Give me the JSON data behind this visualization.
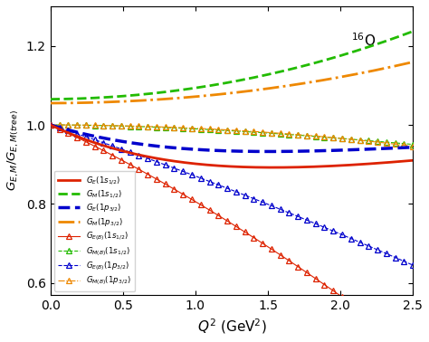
{
  "title": "$^{16}$O",
  "xlabel": "$Q^2$ (GeV$^2$)",
  "ylabel": "$G_{E,M}/G_{E,M(tree)}$",
  "xlim": [
    0,
    2.5
  ],
  "ylim": [
    0.57,
    1.3
  ],
  "yticks": [
    0.6,
    0.8,
    1.0,
    1.2
  ],
  "xticks": [
    0.0,
    0.5,
    1.0,
    1.5,
    2.0,
    2.5
  ],
  "col_red": "#dd2200",
  "col_green": "#22bb00",
  "col_blue": "#0000cc",
  "col_orange": "#ee8800"
}
